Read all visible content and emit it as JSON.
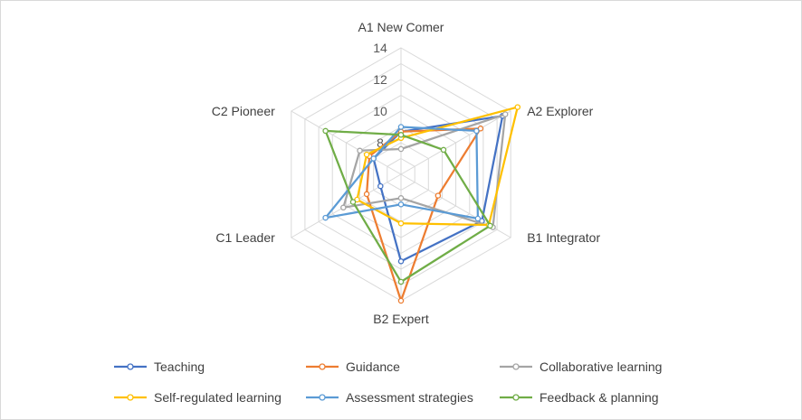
{
  "chart_data": {
    "type": "radar",
    "categories": [
      "A1 New Comer",
      "A2 Explorer",
      "B1 Integrator",
      "B2 Expert",
      "C1 Leader",
      "C2 Pioneer"
    ],
    "rlim": [
      6,
      14
    ],
    "ticks": [
      8,
      10,
      12,
      14
    ],
    "grid": true,
    "legend_position": "bottom",
    "series": [
      {
        "name": "Teaching",
        "color": "#4472c4",
        "values": [
          8.7,
          13.4,
          11.9,
          11.5,
          7.5,
          8.0
        ]
      },
      {
        "name": "Guidance",
        "color": "#ed7d31",
        "values": [
          8.7,
          11.8,
          8.7,
          14.0,
          8.5,
          8.3
        ]
      },
      {
        "name": "Collaborative learning",
        "color": "#a5a5a5",
        "values": [
          7.6,
          13.6,
          12.7,
          7.5,
          10.2,
          9.0
        ]
      },
      {
        "name": "Self-regulated learning",
        "color": "#ffc000",
        "values": [
          8.3,
          14.5,
          12.4,
          9.1,
          9.2,
          8.5
        ]
      },
      {
        "name": "Assessment strategies",
        "color": "#5b9bd5",
        "values": [
          9.0,
          11.5,
          11.6,
          7.9,
          11.5,
          8.0
        ]
      },
      {
        "name": "Feedback & planning",
        "color": "#70ad47",
        "values": [
          8.5,
          9.1,
          12.5,
          12.8,
          9.5,
          11.5
        ]
      }
    ]
  }
}
